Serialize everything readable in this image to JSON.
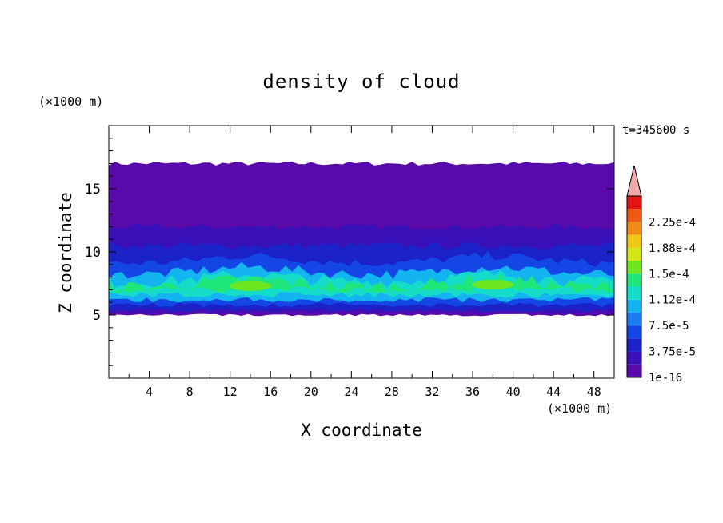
{
  "chart_data": {
    "type": "heatmap",
    "title": "density of cloud",
    "xlabel": "X coordinate",
    "ylabel": "Z coordinate",
    "x_unit": "(×1000 m)",
    "y_unit": "(×1000 m)",
    "time_label": "t=345600 s",
    "xlim": [
      0,
      50
    ],
    "ylim": [
      0,
      20
    ],
    "x_ticks": [
      4,
      8,
      12,
      16,
      20,
      24,
      28,
      32,
      36,
      40,
      44,
      48
    ],
    "y_ticks": [
      5,
      10,
      15
    ],
    "colorbar": {
      "tick_labels": [
        "1e-16",
        "3.75e-5",
        "7.5e-5",
        "1.12e-4",
        "1.5e-4",
        "1.88e-4",
        "2.25e-4"
      ],
      "levels": [
        {
          "value": 1e-16,
          "color": "#5a0aaa"
        },
        {
          "value": 1.875e-05,
          "color": "#3a10b8"
        },
        {
          "value": 3.75e-05,
          "color": "#1a22c8"
        },
        {
          "value": 5.625e-05,
          "color": "#1446e6"
        },
        {
          "value": 7.5e-05,
          "color": "#1e7cf2"
        },
        {
          "value": 9.375e-05,
          "color": "#14b4f0"
        },
        {
          "value": 0.0001125,
          "color": "#14dcc8"
        },
        {
          "value": 0.00013125,
          "color": "#1ee678"
        },
        {
          "value": 0.00015,
          "color": "#6ee61e"
        },
        {
          "value": 0.00016875,
          "color": "#d2e614"
        },
        {
          "value": 0.0001875,
          "color": "#f0c814"
        },
        {
          "value": 0.00020625,
          "color": "#f08c14"
        },
        {
          "value": 0.000225,
          "color": "#ee5a14"
        },
        {
          "value": 0.00024375,
          "color": "#e61414"
        }
      ],
      "extend_color": "#f0a8a8"
    },
    "cloud_layers": [
      {
        "z_bottom": 5.0,
        "z_top": 17.0,
        "level": 0
      },
      {
        "z_bottom": 5.2,
        "z_top": 12.0,
        "level": 1
      },
      {
        "z_bottom": 5.4,
        "z_top": 10.5,
        "level": 2
      },
      {
        "z_bottom": 5.8,
        "z_top": 9.5,
        "level": 3
      },
      {
        "z_bottom": 6.2,
        "z_top": 8.6,
        "level": 5
      },
      {
        "z_bottom": 6.6,
        "z_top": 8.0,
        "level": 6
      },
      {
        "z_bottom": 7.0,
        "z_top": 7.6,
        "level": 7
      }
    ],
    "maxima": [
      {
        "x": 14,
        "z": 7.3,
        "level": 8
      },
      {
        "x": 38,
        "z": 7.4,
        "level": 8
      }
    ]
  }
}
